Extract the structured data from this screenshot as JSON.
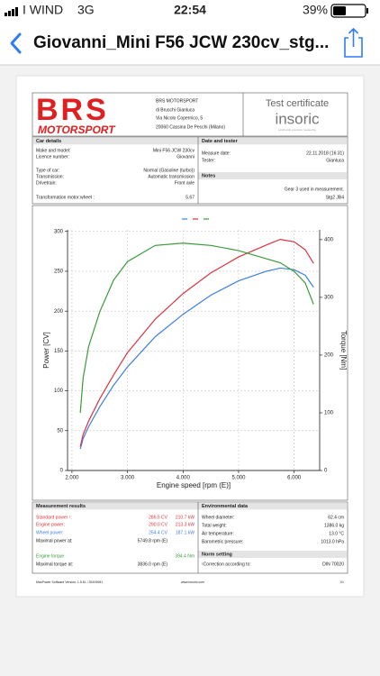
{
  "status_bar": {
    "carrier": "I WIND",
    "network": "3G",
    "time": "22:54",
    "battery": "39%"
  },
  "nav": {
    "title": "Giovanni_Mini F56 JCW 230cv_stg..."
  },
  "header": {
    "logo_top": "BRS",
    "logo_bottom": "MOTORSPORT",
    "company": [
      "BRS MOTORSPORT",
      "di Bruschi Gianluca",
      "Via Nicolo Copernico, 5",
      "20060 Cassina De Pecchi (Milano)"
    ],
    "certificate": "Test certificate",
    "brand": "insoric",
    "brand_tagline": "world wide precision measuring"
  },
  "car_details": {
    "title": "Car details",
    "rows": [
      [
        "Make and model:",
        "Mini F56 JCW 230cv"
      ],
      [
        "Licence number:",
        "Giovanni"
      ],
      [
        "Type of car:",
        "Normal (Gasoline (turbo))"
      ],
      [
        "Transmission:",
        "Automatic transmission"
      ],
      [
        "Drivetrain:",
        "Front axle"
      ],
      [
        "Transformation motor:wheel :",
        "5.67"
      ]
    ]
  },
  "date_tester": {
    "title": "Date and tester",
    "rows": [
      [
        "Measure date:",
        "22.11.2018 (16:31)"
      ],
      [
        "Tester:",
        "Gianluca"
      ]
    ]
  },
  "notes": {
    "title": "Notes",
    "lines": [
      "Gear 3 used in measurement.",
      "Stg2 JB4"
    ]
  },
  "chart_data": {
    "type": "line",
    "xlabel": "Engine speed [rpm (E)]",
    "ylabel": "Power [CV]",
    "y2label": "Torque [Nm]",
    "x": [
      2150,
      2200,
      2300,
      2500,
      2750,
      3000,
      3500,
      4000,
      4500,
      5000,
      5500,
      5750,
      6000,
      6200,
      6350
    ],
    "xlim": [
      1920,
      6460
    ],
    "xticks": [
      {
        "value": 2000,
        "label": "2.000"
      },
      {
        "value": 3000,
        "label": "3.000"
      },
      {
        "value": 4000,
        "label": "4.000"
      },
      {
        "value": 5000,
        "label": "5.000"
      },
      {
        "value": 6000,
        "label": "6.000"
      }
    ],
    "ylim": [
      0,
      302
    ],
    "yticks": [
      0,
      50,
      100,
      150,
      200,
      250,
      300
    ],
    "y2lim": [
      0,
      417
    ],
    "y2ticks": [
      0,
      100,
      200,
      300,
      400
    ],
    "grid": true,
    "series": [
      {
        "color": "#3d7fe0",
        "values": [
          27,
          40,
          55,
          80,
          107,
          130,
          168,
          196,
          220,
          238,
          250,
          254,
          252,
          245,
          230
        ]
      },
      {
        "color": "#d9343f",
        "values": [
          30,
          45,
          62,
          90,
          120,
          148,
          190,
          222,
          248,
          268,
          283,
          290,
          287,
          277,
          260
        ]
      },
      {
        "color": "#3a9a3a",
        "axis": "y2",
        "values": [
          100,
          160,
          215,
          275,
          330,
          362,
          390,
          394,
          390,
          381,
          367,
          360,
          345,
          325,
          288
        ]
      }
    ]
  },
  "results": {
    "title": "Measurement results",
    "rows": [
      {
        "label": "Standard power ¹:",
        "first": "286.5 CV",
        "second": "210.7 kW",
        "color": "#d9343f"
      },
      {
        "label": "Engine power:",
        "first": "290.0 CV",
        "second": "213.3 kW",
        "color": "#d9343f"
      },
      {
        "label": "Wheel power:",
        "first": "254.4 CV",
        "second": "187.1 kW",
        "color": "#3d7fe0"
      },
      {
        "label": "Maximal power at:",
        "first": "5749.8 rpm (E)",
        "color": "#222222"
      },
      {
        "label": "Engine torque",
        "second": "394.4 Nm",
        "color": "#3a9a3a"
      },
      {
        "label": "Maximal torque at:",
        "first": "3836.0 rpm (E)",
        "color": "#222222"
      }
    ]
  },
  "environment": {
    "title": "Environmental data",
    "rows": [
      [
        "Wheel diameter:",
        "62.4 cm"
      ],
      [
        "Total weight:",
        "1386.0 kg"
      ],
      [
        "Air temperature:",
        "13.0 °C"
      ],
      [
        "Barometric pressure:",
        "1013.0 hPa"
      ]
    ]
  },
  "norm": {
    "title": "Norm setting",
    "rows": [
      [
        "¹Correction according to:",
        "DIN 70020"
      ]
    ]
  },
  "footer": {
    "software": "MaxPower Software Version: 1.5.61 / 35109081",
    "website": "www.insoric.com",
    "page": "1/1"
  }
}
